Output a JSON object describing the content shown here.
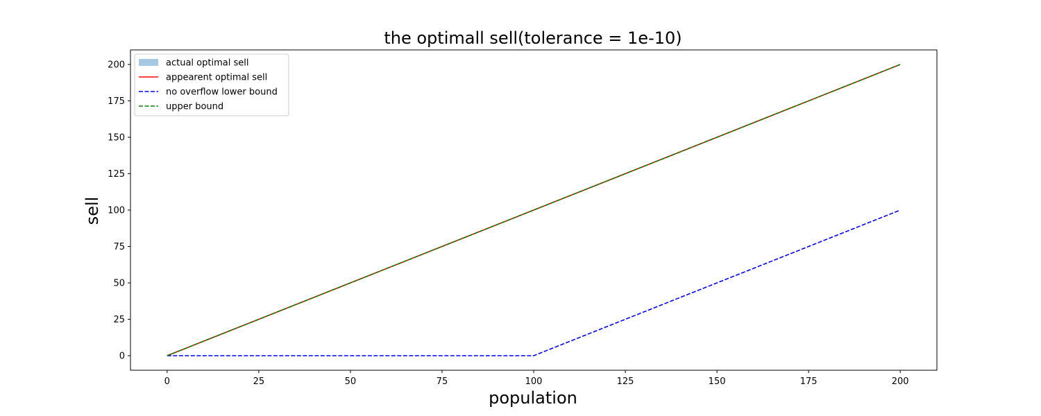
{
  "chart_data": {
    "type": "line",
    "title": "the optimall sell(tolerance = 1e-10)",
    "xlabel": "population",
    "ylabel": "sell",
    "xlim": [
      -10,
      210
    ],
    "ylim": [
      -10,
      210
    ],
    "xticks": [
      0,
      25,
      50,
      75,
      100,
      125,
      150,
      175,
      200
    ],
    "yticks": [
      0,
      25,
      50,
      75,
      100,
      125,
      150,
      175,
      200
    ],
    "grid": false,
    "legend_position": "top-left",
    "series": [
      {
        "name": "actual optimal sell",
        "style": "filled-area",
        "color": "#a6c8e2",
        "x": [
          0,
          200
        ],
        "y": [
          0,
          200
        ]
      },
      {
        "name": "appearent optimal sell",
        "style": "solid",
        "color": "#ff0000",
        "x": [
          0,
          200
        ],
        "y": [
          0,
          200
        ]
      },
      {
        "name": "no overflow lower bound",
        "style": "dashed",
        "color": "#0000ff",
        "x": [
          0,
          100,
          200
        ],
        "y": [
          0,
          0,
          100
        ]
      },
      {
        "name": "upper bound",
        "style": "dashed",
        "color": "#008000",
        "x": [
          0,
          200
        ],
        "y": [
          0,
          200
        ]
      }
    ]
  }
}
